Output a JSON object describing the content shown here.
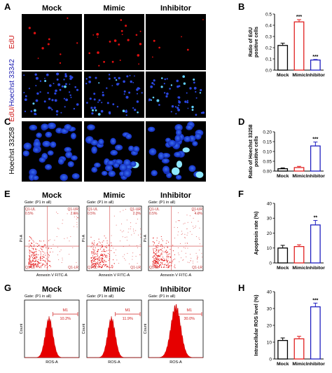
{
  "panel_letters": [
    "A",
    "B",
    "C",
    "D",
    "E",
    "F",
    "G",
    "H"
  ],
  "conditions": [
    "Mock",
    "Mimic",
    "Inhibitor"
  ],
  "row_labels": {
    "edu": "EdU",
    "edu_hoechst_a": "EdU/",
    "edu_hoechst_b": "Hoechst 33342",
    "hoechst_33258": "Hoechst 33258"
  },
  "colors": {
    "mock": "#000000",
    "mimic": "#e02020",
    "inhibitor": "#2020c0",
    "edu_text": "#d01818",
    "hoechst_text": "#1a1ab0",
    "flow_red": "#e60000"
  },
  "flow_plots": {
    "gate": "Gate: (P1 in all)",
    "x_axis": "Annexin V FITC-A",
    "y_axis": "PI-A",
    "quadrant_tags": [
      "Q1-UL",
      "Q1-UR",
      "Q1-LL",
      "Q1-LR"
    ],
    "values": [
      {
        "ul": "0.5%",
        "ur": "2.6%"
      },
      {
        "ul": "0.5%",
        "ur": "2.0%"
      },
      {
        "ul": "0.5%",
        "ur": "4.0%"
      }
    ]
  },
  "ros_histograms": {
    "gate": "Gate: (P1 in all)",
    "x_axis": "ROS-A",
    "y_axis": "Count",
    "marker": "M1",
    "values": [
      "10.2%",
      "11.9%",
      "30.0%"
    ]
  },
  "chart_data": [
    {
      "panel": "B",
      "type": "bar",
      "categories": [
        "Mock",
        "Mimic",
        "Inhibitor"
      ],
      "values": [
        0.22,
        0.43,
        0.09
      ],
      "errors": [
        0.02,
        0.02,
        0.005
      ],
      "significance": [
        "",
        "***",
        "***"
      ],
      "ylabel": "Ratio of EdU positive cells",
      "ylim": [
        0,
        0.5
      ],
      "yticks": [
        "0.0",
        "0.1",
        "0.2",
        "0.3",
        "0.4",
        "0.5"
      ]
    },
    {
      "panel": "D",
      "type": "bar",
      "categories": [
        "Mock",
        "Mimic",
        "Inhibitor"
      ],
      "values": [
        0.012,
        0.018,
        0.128
      ],
      "errors": [
        0.004,
        0.006,
        0.02
      ],
      "significance": [
        "",
        "",
        "***"
      ],
      "ylabel": "Ratio of Hoechst 33258 positive cells",
      "ylim": [
        0,
        0.2
      ],
      "yticks": [
        "0.00",
        "0.05",
        "0.10",
        "0.15",
        "0.20"
      ]
    },
    {
      "panel": "F",
      "type": "bar",
      "categories": [
        "Mock",
        "Mimic",
        "Inhibitor"
      ],
      "values": [
        10,
        11,
        25.5
      ],
      "errors": [
        1.8,
        1.2,
        3.0
      ],
      "significance": [
        "",
        "",
        "**"
      ],
      "ylabel": "Apoptosis rate (%)",
      "ylim": [
        0,
        40
      ],
      "yticks": [
        "0",
        "10",
        "20",
        "30",
        "40"
      ]
    },
    {
      "panel": "H",
      "type": "bar",
      "categories": [
        "Mock",
        "Mimic",
        "Inhibitor"
      ],
      "values": [
        11,
        12,
        31
      ],
      "errors": [
        1.5,
        1.5,
        2.2
      ],
      "significance": [
        "",
        "",
        "***"
      ],
      "ylabel": "Intracellular ROS level (%)",
      "ylim": [
        0,
        40
      ],
      "yticks": [
        "0",
        "10",
        "20",
        "30",
        "40"
      ]
    }
  ]
}
